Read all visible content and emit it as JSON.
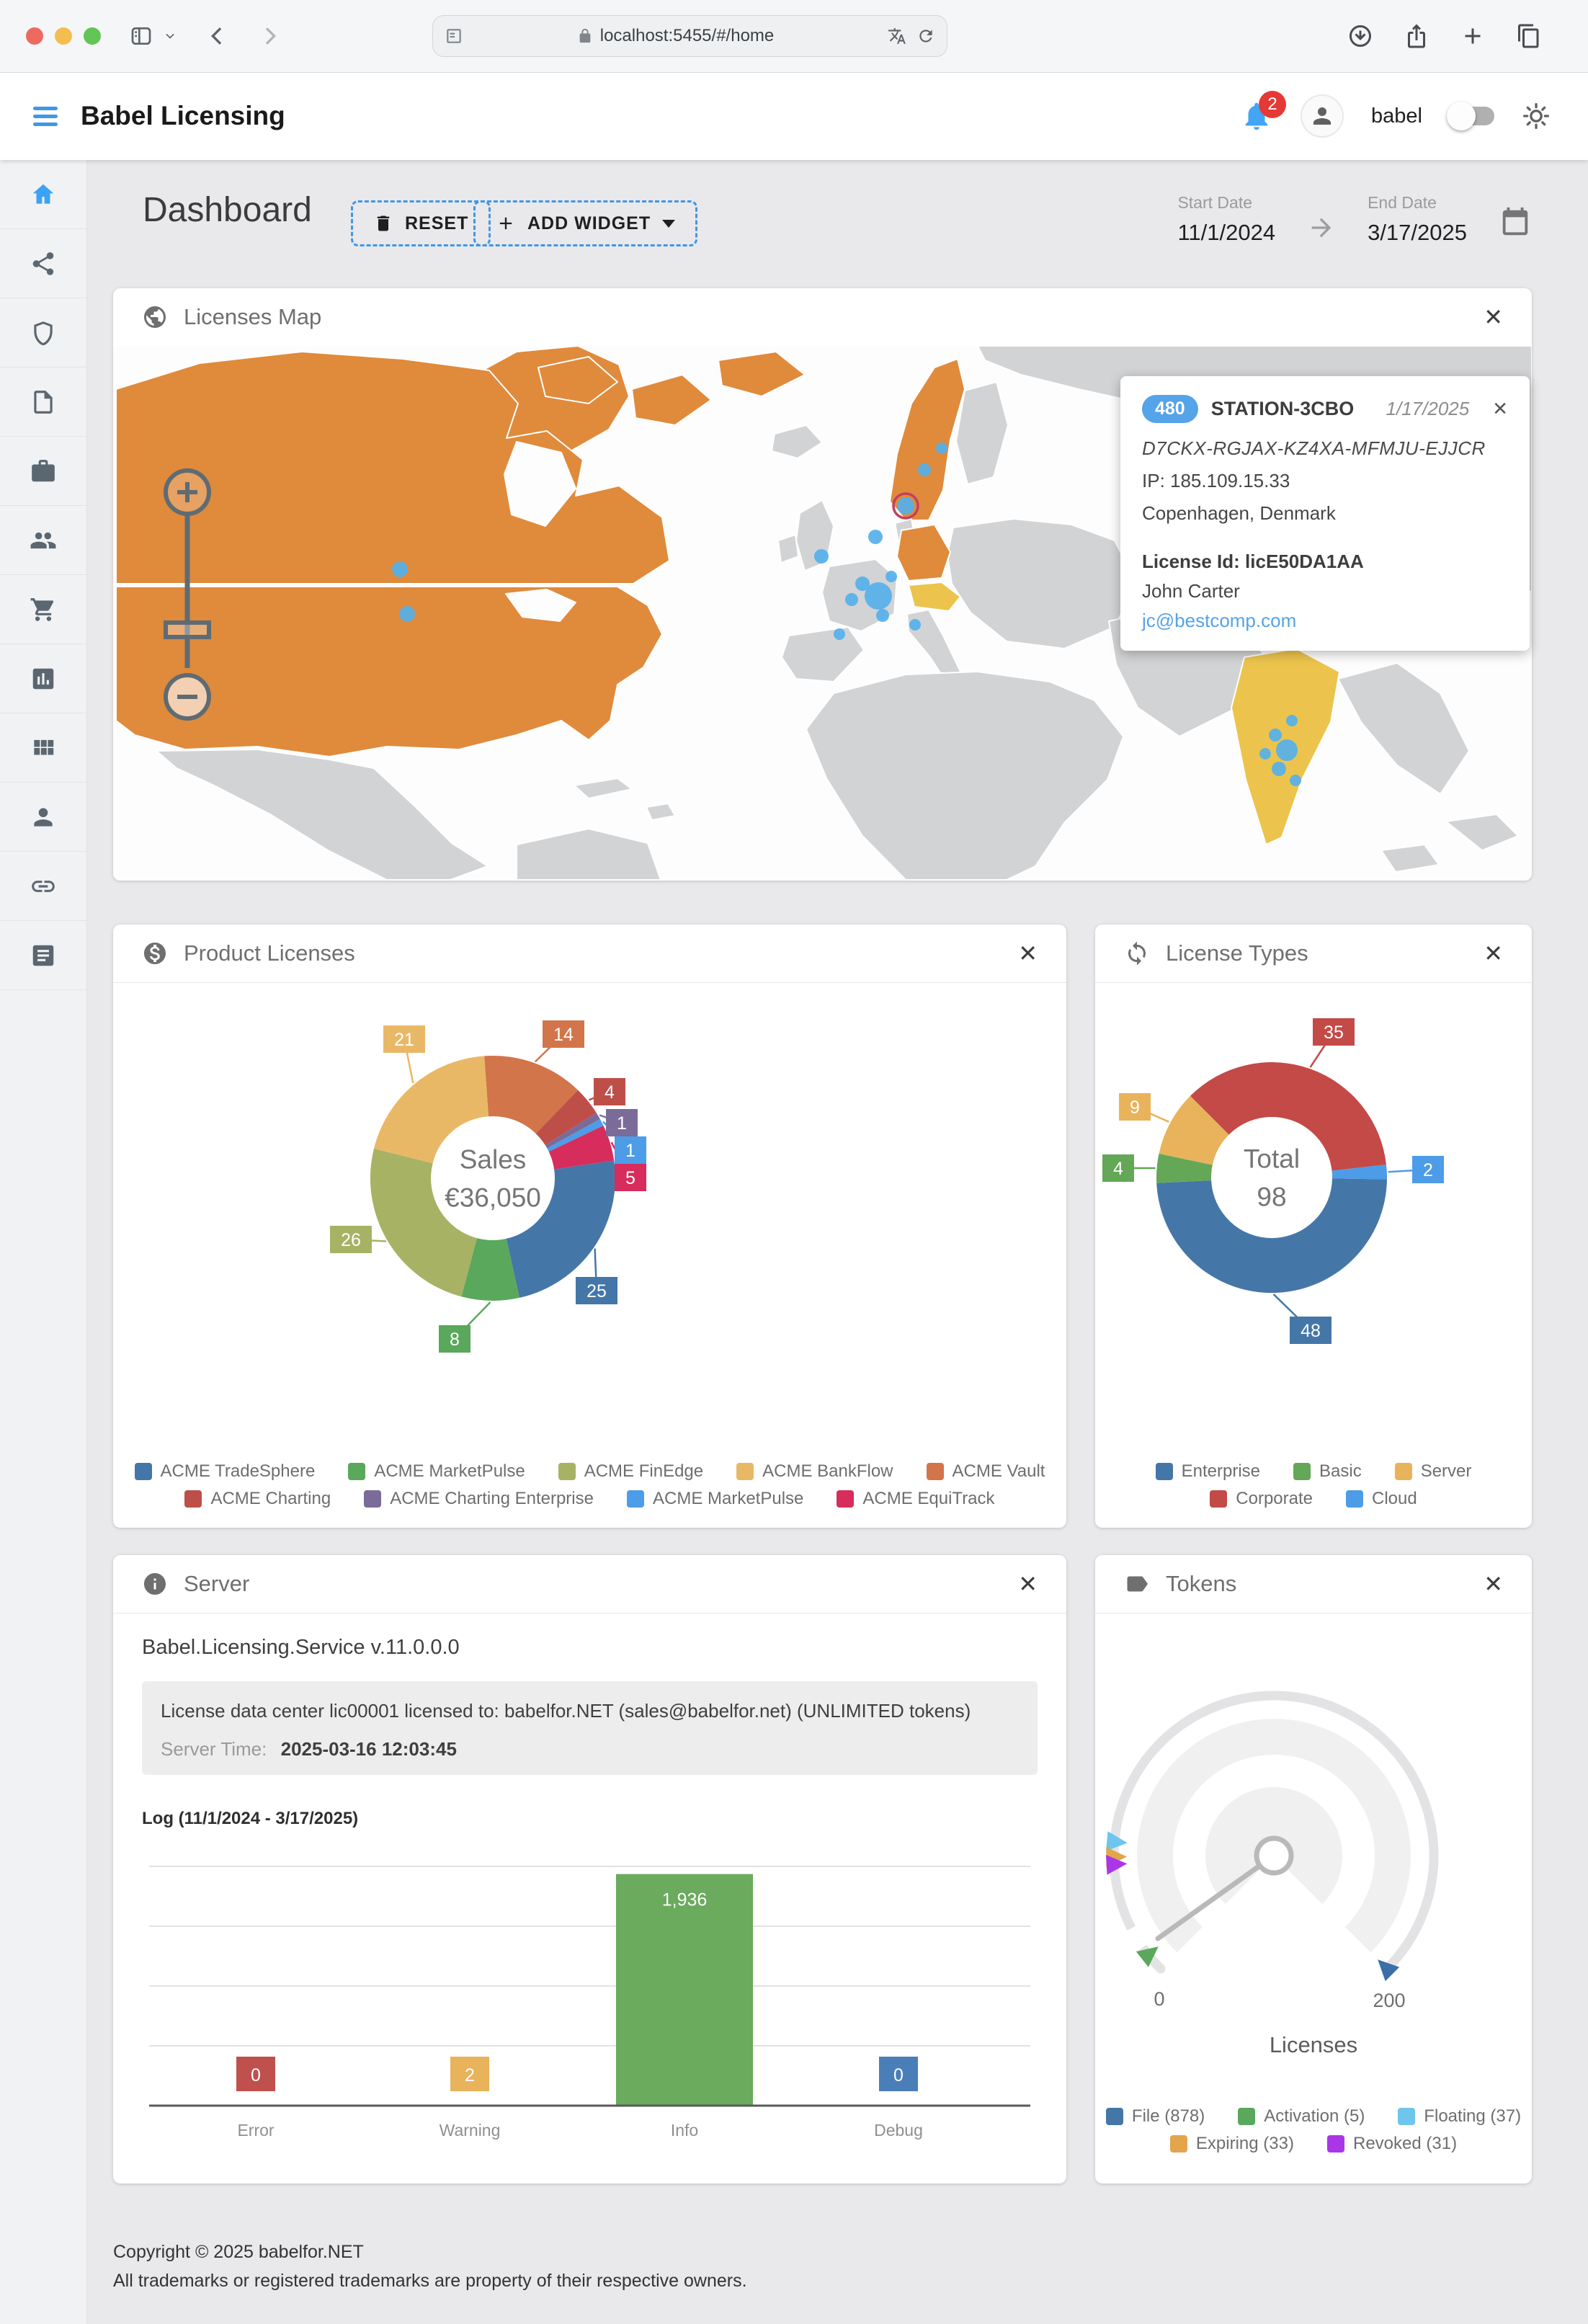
{
  "theme": {
    "accent": "#3f97e6"
  },
  "browser": {
    "url": "localhost:5455/#/home"
  },
  "app_header": {
    "title": "Babel Licensing",
    "notification_count": "2",
    "username": "babel"
  },
  "sidebar": {
    "items": [
      {
        "icon": "home-icon",
        "active": true
      },
      {
        "icon": "share-icon"
      },
      {
        "icon": "shield-icon"
      },
      {
        "icon": "document-icon"
      },
      {
        "icon": "briefcase-icon"
      },
      {
        "icon": "people-icon"
      },
      {
        "icon": "cart-icon"
      },
      {
        "icon": "chart-icon"
      },
      {
        "icon": "grid-icon"
      },
      {
        "icon": "person-icon"
      },
      {
        "icon": "link-icon"
      },
      {
        "icon": "list-icon"
      }
    ]
  },
  "dashboard": {
    "title": "Dashboard",
    "reset_button": "RESET",
    "add_widget_button": "ADD WIDGET",
    "start_date_label": "Start Date",
    "start_date_value": "11/1/2024",
    "end_date_label": "End Date",
    "end_date_value": "3/17/2025"
  },
  "map_widget": {
    "title": "Licenses Map",
    "colors": {
      "land_active": "#e08a3c",
      "land_secondary": "#ecc44d",
      "land_default": "#d2d3d5",
      "marker": "#55b0ea",
      "marker_ring": "#c2415e",
      "ocean": "#fdfdfd"
    },
    "tooltip": {
      "badge": "480",
      "station": "STATION-3CBO",
      "date": "1/17/2025",
      "license_key": "D7CKX-RGJAX-KZ4XA-MFMJU-EJJCR",
      "ip": "IP: 185.109.15.33",
      "location": "Copenhagen, Denmark",
      "license_id": "License Id: licE50DA1AA",
      "owner": "John Carter",
      "email": "jc@bestcomp.com"
    }
  },
  "product_widget": {
    "title": "Product Licenses",
    "center_label": "Sales",
    "center_value": "€36,050",
    "chart": {
      "type": "donut",
      "start_angle": -4,
      "segments": [
        {
          "label": "ACME Vault",
          "value": 14,
          "color": "#d2754a"
        },
        {
          "label": "ACME Charting",
          "value": 4,
          "color": "#bd4f48"
        },
        {
          "label": "ACME Charting Enterprise",
          "value": 1,
          "color": "#7b6b99"
        },
        {
          "label": "ACME MarketPulse",
          "value": 1,
          "color": "#4d9ce8"
        },
        {
          "label": "ACME EquiTrack",
          "value": 5,
          "color": "#d62d5c"
        },
        {
          "label": "ACME TradeSphere",
          "value": 25,
          "color": "#4576a8"
        },
        {
          "label": "ACME MarketPulse",
          "value": 8,
          "color": "#5aa85c"
        },
        {
          "label": "ACME FinEdge",
          "value": 26,
          "color": "#a7b264"
        },
        {
          "label": "ACME BankFlow",
          "value": 21,
          "color": "#e9b867"
        }
      ]
    },
    "legend_rows": [
      [
        {
          "label": "ACME TradeSphere",
          "color": "#4576a8"
        },
        {
          "label": "ACME MarketPulse",
          "color": "#5aa85c"
        },
        {
          "label": "ACME FinEdge",
          "color": "#a7b264"
        },
        {
          "label": "ACME BankFlow",
          "color": "#e9b867"
        },
        {
          "label": "ACME Vault",
          "color": "#d2754a"
        }
      ],
      [
        {
          "label": "ACME Charting",
          "color": "#bd4f48"
        },
        {
          "label": "ACME Charting Enterprise",
          "color": "#7b6b99"
        },
        {
          "label": "ACME MarketPulse",
          "color": "#4d9ce8"
        },
        {
          "label": "ACME EquiTrack",
          "color": "#d62d5c"
        }
      ]
    ]
  },
  "types_widget": {
    "title": "License Types",
    "center_label": "Total",
    "center_value": "98",
    "chart": {
      "type": "donut",
      "start_angle": -45,
      "segments": [
        {
          "label": "Corporate",
          "value": 35,
          "color": "#c34a47"
        },
        {
          "label": "Cloud",
          "value": 2,
          "color": "#4d9ce8"
        },
        {
          "label": "Enterprise",
          "value": 48,
          "color": "#4576a8"
        },
        {
          "label": "Basic",
          "value": 4,
          "color": "#63a757"
        },
        {
          "label": "Server",
          "value": 9,
          "color": "#e8b35b"
        }
      ]
    },
    "legend_rows": [
      [
        {
          "label": "Enterprise",
          "color": "#4576a8"
        },
        {
          "label": "Basic",
          "color": "#63a757"
        },
        {
          "label": "Server",
          "color": "#e8b35b"
        }
      ],
      [
        {
          "label": "Corporate",
          "color": "#c34a47"
        },
        {
          "label": "Cloud",
          "color": "#4d9ce8"
        }
      ]
    ]
  },
  "server_widget": {
    "title": "Server",
    "service_version": "Babel.Licensing.Service v.11.0.0.0",
    "license_line": "License data center lic00001 licensed to: babelfor.NET (sales@babelfor.net) (UNLIMITED tokens)",
    "server_time_label": "Server Time:",
    "server_time_value": "2025-03-16 12:03:45",
    "log_title": "Log (11/1/2024 - 3/17/2025)",
    "chart": {
      "type": "bar",
      "categories": [
        "Error",
        "Warning",
        "Info",
        "Debug"
      ],
      "values": [
        0,
        2,
        1936,
        0
      ],
      "value_labels": [
        "0",
        "2",
        "1,936",
        "0"
      ],
      "colors": [
        "#c0504d",
        "#e8b35b",
        "#6aab5d",
        "#4a7eb8"
      ],
      "y_max": 2000,
      "grid_step": 500
    }
  },
  "tokens_widget": {
    "title": "Tokens",
    "axis_title": "Licenses",
    "scale_min": "0",
    "scale_max": "200",
    "gauge": {
      "min": 0,
      "max": 200,
      "needle_value": 7,
      "markers": [
        {
          "label": "File",
          "value": 200,
          "color": "#3a6fa8"
        },
        {
          "label": "Activation",
          "value": 5,
          "color": "#5aa85c"
        },
        {
          "label": "Floating",
          "value": 37,
          "color": "#6ec6ed"
        },
        {
          "label": "Expiring",
          "value": 33,
          "color": "#e2a54c"
        },
        {
          "label": "Revoked",
          "value": 31,
          "color": "#aa36e8"
        }
      ]
    },
    "legend_rows": [
      [
        {
          "label": "File (878)",
          "color": "#4576a8"
        },
        {
          "label": "Activation (5)",
          "color": "#5aa85c"
        },
        {
          "label": "Floating (37)",
          "color": "#6ec6ed"
        }
      ],
      [
        {
          "label": "Expiring (33)",
          "color": "#e2a54c"
        },
        {
          "label": "Revoked (31)",
          "color": "#aa36e8"
        }
      ]
    ]
  },
  "footer": {
    "line1": "Copyright © 2025 babelfor.NET",
    "line2": "All trademarks or registered trademarks are property of their respective owners."
  }
}
